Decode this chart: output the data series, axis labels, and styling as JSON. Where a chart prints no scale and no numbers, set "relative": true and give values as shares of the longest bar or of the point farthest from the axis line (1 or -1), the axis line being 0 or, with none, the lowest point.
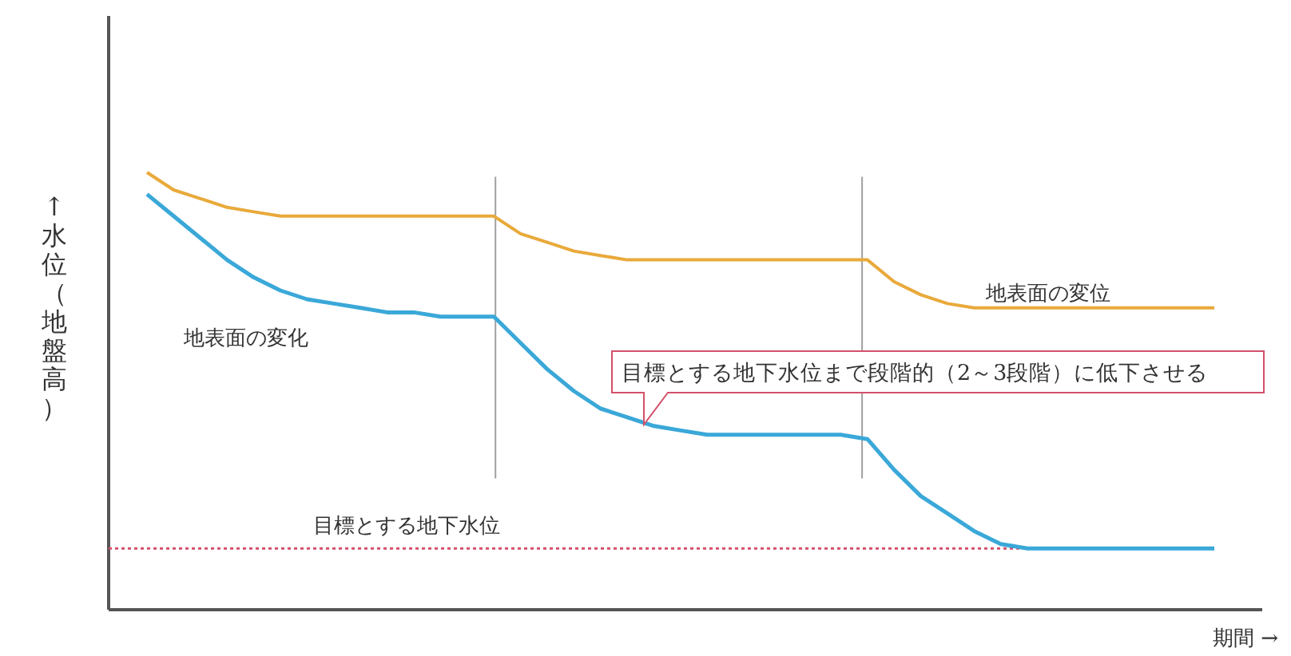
{
  "chart_data": {
    "type": "line",
    "relative": true,
    "ylabel": "↑水位（地盤高）",
    "xlabel": "期間 →",
    "categories": [
      null,
      null,
      null,
      null,
      null,
      null,
      null,
      null,
      null,
      null,
      null,
      null,
      null,
      null,
      null,
      null,
      null,
      null,
      null,
      null,
      null,
      null,
      null,
      null,
      null,
      null,
      null,
      null,
      null,
      null,
      null,
      null,
      null,
      null,
      null,
      null,
      null,
      null,
      null,
      null,
      null
    ],
    "series": [
      {
        "name": "地表面の変位",
        "color": "#e9a93a",
        "values": [
          1.0,
          0.96,
          0.94,
          0.92,
          0.91,
          0.9,
          0.9,
          0.9,
          0.9,
          0.9,
          0.9,
          0.9,
          0.9,
          0.9,
          0.86,
          0.84,
          0.82,
          0.81,
          0.8,
          0.8,
          0.8,
          0.8,
          0.8,
          0.8,
          0.8,
          0.8,
          0.8,
          0.8,
          0.75,
          0.72,
          0.7,
          0.69,
          0.69,
          0.69,
          0.69,
          0.69,
          0.69,
          0.69,
          0.69,
          0.69,
          0.69
        ]
      },
      {
        "name": "地表面の変化",
        "color": "#3aa8d8",
        "values": [
          0.95,
          0.9,
          0.85,
          0.8,
          0.76,
          0.73,
          0.71,
          0.7,
          0.69,
          0.68,
          0.68,
          0.67,
          0.67,
          0.67,
          0.61,
          0.55,
          0.5,
          0.46,
          0.44,
          0.42,
          0.41,
          0.4,
          0.4,
          0.4,
          0.4,
          0.4,
          0.4,
          0.39,
          0.32,
          0.26,
          0.22,
          0.18,
          0.15,
          0.14,
          0.14,
          0.14,
          0.14,
          0.14,
          0.14,
          0.14,
          0.14
        ]
      }
    ],
    "ref_lines": [
      {
        "axis": "y",
        "value": 0.14,
        "label": "目標とする地下水位",
        "color": "#d4506a",
        "line_style": "dotted"
      }
    ],
    "annotations": [
      "目標とする地下水位まで段階的（2～3段階）に低下させる"
    ],
    "legend": false,
    "marker": "none",
    "line_style": "solid"
  }
}
